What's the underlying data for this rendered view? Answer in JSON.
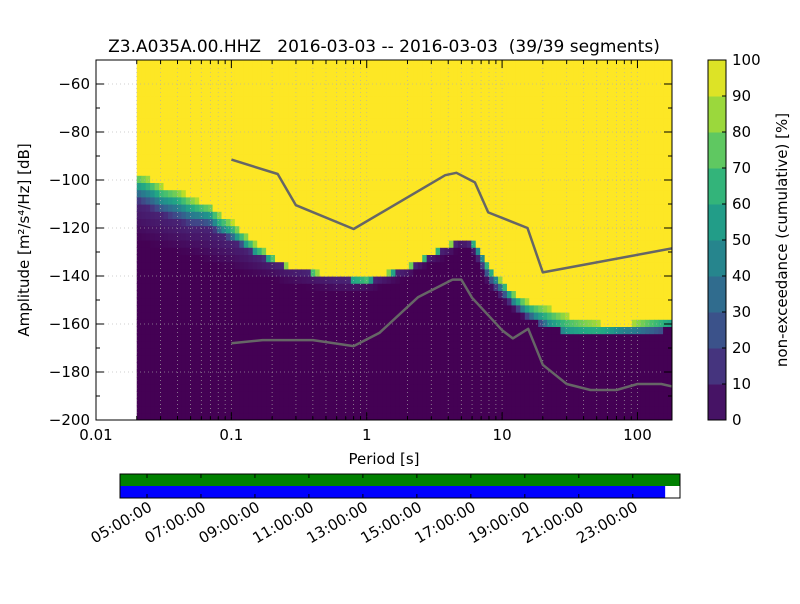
{
  "chart_data": [
    {
      "type": "heatmap",
      "title": "Z3.A035A.00.HHZ   2016-03-03 -- 2016-03-03  (39/39 segments)",
      "xlabel": "Period [s]",
      "ylabel": "Amplitude [m²/s⁴/Hz] [dB]",
      "xscale": "log",
      "xlim": [
        0.01,
        180
      ],
      "ylim": [
        -200,
        -50
      ],
      "x_ticks": [
        0.01,
        0.1,
        1,
        10,
        100
      ],
      "x_tick_labels": [
        "0.01",
        "0.1",
        "1",
        "10",
        "100"
      ],
      "y_ticks": [
        -200,
        -180,
        -160,
        -140,
        -120,
        -100,
        -80,
        -60
      ],
      "y_tick_labels": [
        "−200",
        "−180",
        "−160",
        "−140",
        "−120",
        "−100",
        "−80",
        "−60"
      ],
      "grid": true,
      "colormap": "viridis",
      "data_period_range": [
        0.02,
        180
      ],
      "percentile_boundaries": {
        "period": [
          0.02,
          0.025,
          0.03,
          0.04,
          0.05,
          0.06,
          0.07,
          0.08,
          0.1,
          0.12,
          0.15,
          0.2,
          0.25,
          0.3,
          0.4,
          0.5,
          0.6,
          0.7,
          0.8,
          1,
          1.2,
          1.5,
          2,
          2.5,
          3,
          4,
          5,
          6,
          7,
          8,
          10,
          12,
          15,
          20,
          25,
          30,
          40,
          50,
          60,
          80,
          100,
          130,
          180
        ],
        "p0": [
          -125,
          -127,
          -128,
          -130,
          -131,
          -133,
          -135,
          -136,
          -137,
          -139,
          -140,
          -141,
          -143,
          -144,
          -145,
          -146,
          -147,
          -147,
          -147,
          -146,
          -145,
          -143,
          -141,
          -137,
          -135,
          -132,
          -128,
          -130,
          -138,
          -144,
          -150,
          -154,
          -158,
          -160,
          -162,
          -164,
          -165,
          -165,
          -165,
          -164,
          -163,
          -163,
          -162
        ],
        "p10": [
          -109,
          -112,
          -114,
          -117,
          -119,
          -119,
          -120,
          -122,
          -125,
          -127,
          -131,
          -134,
          -136,
          -137,
          -139,
          -140,
          -141,
          -141,
          -142,
          -142,
          -141,
          -139,
          -137,
          -134,
          -131,
          -128,
          -125,
          -127,
          -135,
          -142,
          -148,
          -152,
          -157,
          -161,
          -164,
          -165,
          -166,
          -166,
          -165,
          -165,
          -164,
          -164,
          -163
        ],
        "p50": [
          -103,
          -105,
          -108,
          -110,
          -113,
          -114,
          -115,
          -119,
          -122,
          -126,
          -130,
          -134,
          -137,
          -138,
          -139,
          -140,
          -141,
          -141,
          -142,
          -142,
          -141,
          -139,
          -137,
          -134,
          -131,
          -128,
          -125,
          -126,
          -131,
          -138,
          -144,
          -150,
          -154,
          -158,
          -161,
          -163,
          -164,
          -164,
          -163,
          -162,
          -162,
          -161,
          -160
        ],
        "p90": [
          -97,
          -99,
          -102,
          -104,
          -107,
          -109,
          -110,
          -113,
          -117,
          -121,
          -126,
          -131,
          -135,
          -136,
          -138,
          -139,
          -140,
          -140,
          -140,
          -141,
          -140,
          -138,
          -136,
          -133,
          -130,
          -127,
          -124,
          -125,
          -130,
          -136,
          -142,
          -146,
          -150,
          -152,
          -154,
          -156,
          -158,
          -159,
          -160,
          -160,
          -159,
          -158,
          -157
        ]
      },
      "series": [
        {
          "kind": "line",
          "color": "#666666",
          "x": [
            0.1,
            0.22,
            0.3,
            0.8,
            3.8,
            4.6,
            6.3,
            7.9,
            15.4,
            20,
            180
          ],
          "y": [
            -91.5,
            -97.5,
            -110.5,
            -120.4,
            -98,
            -97,
            -101,
            -113.5,
            -120,
            -138.5,
            -128.5
          ]
        },
        {
          "kind": "line",
          "color": "#666666",
          "x": [
            0.1,
            0.17,
            0.4,
            0.8,
            1.24,
            2.4,
            4.3,
            5,
            6,
            10,
            12,
            15.6,
            20,
            30,
            45,
            70,
            100,
            150,
            180
          ],
          "y": [
            -168,
            -166.7,
            -166.7,
            -169.2,
            -163.7,
            -148.8,
            -141.5,
            -141.5,
            -149.1,
            -162.6,
            -166,
            -162,
            -177,
            -185,
            -187.5,
            -187.5,
            -185,
            -185,
            -186
          ]
        }
      ]
    },
    {
      "type": "colorbar",
      "label": "non-exceedance (cumulative) [%]",
      "ticks": [
        0,
        10,
        20,
        30,
        40,
        50,
        60,
        70,
        80,
        90,
        100
      ],
      "tick_labels": [
        "0",
        "10",
        "20",
        "30",
        "40",
        "50",
        "60",
        "70",
        "80",
        "90",
        "100"
      ],
      "colormap": "viridis",
      "range": [
        0,
        100
      ]
    },
    {
      "type": "timeline",
      "tick_labels": [
        "05:00:00",
        "07:00:00",
        "09:00:00",
        "11:00:00",
        "13:00:00",
        "15:00:00",
        "17:00:00",
        "19:00:00",
        "21:00:00",
        "23:00:00"
      ],
      "tick_hours": [
        5,
        7,
        9,
        11,
        13,
        15,
        17,
        19,
        21,
        23
      ],
      "range_hours": [
        4,
        24.75
      ],
      "segments": [
        {
          "name": "data",
          "color": "#008000",
          "start_hour": 4,
          "end_hour": 24.75
        },
        {
          "name": "psd",
          "color": "#0000ff",
          "start_hour": 4,
          "end_hour": 24.2
        }
      ]
    }
  ]
}
